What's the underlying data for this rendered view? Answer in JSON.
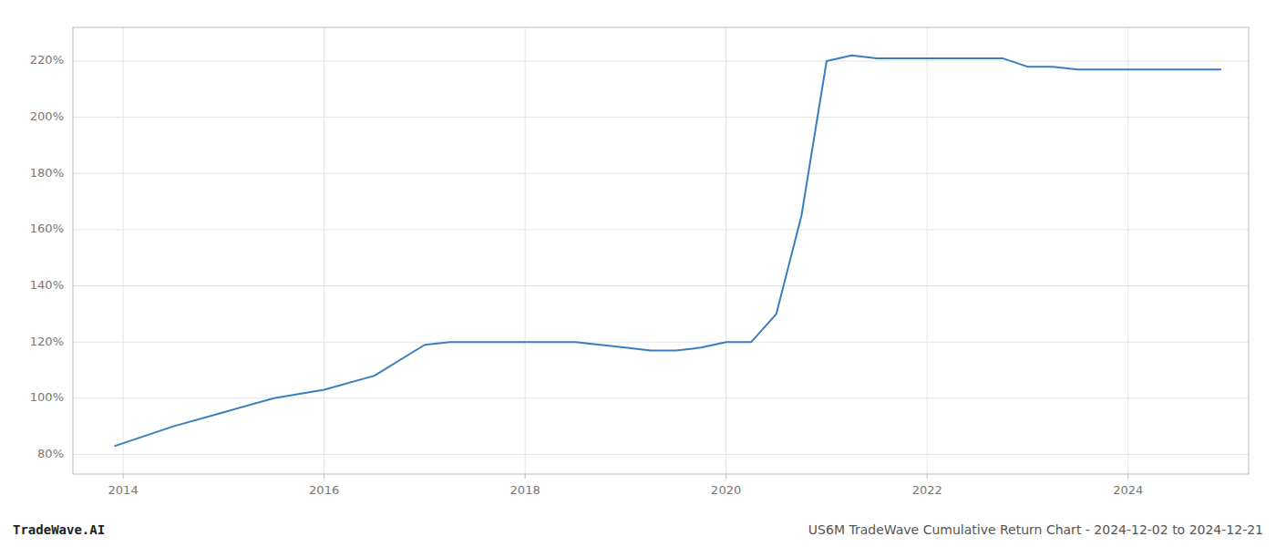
{
  "chart_data": {
    "type": "line",
    "title": "US6M TradeWave Cumulative Return Chart - 2024-12-02 to 2024-12-21",
    "annotations": [
      "TradeWave.AI"
    ],
    "color": "#3a7ebf",
    "grid": true,
    "x": [
      2013.92,
      2014.0,
      2014.5,
      2015.0,
      2015.5,
      2016.0,
      2016.5,
      2017.0,
      2017.25,
      2017.5,
      2018.0,
      2018.5,
      2019.0,
      2019.25,
      2019.5,
      2019.75,
      2020.0,
      2020.25,
      2020.5,
      2020.75,
      2021.0,
      2021.25,
      2021.5,
      2021.75,
      2022.0,
      2022.25,
      2022.5,
      2022.75,
      2023.0,
      2023.25,
      2023.5,
      2023.75,
      2024.0,
      2024.25,
      2024.5,
      2024.75,
      2024.92
    ],
    "values": [
      83,
      84,
      90,
      95,
      100,
      103,
      108,
      119,
      120,
      120,
      120,
      120,
      118,
      117,
      117,
      118,
      120,
      120,
      130,
      165,
      220,
      222,
      221,
      221,
      221,
      221,
      221,
      221,
      218,
      218,
      217,
      217,
      217,
      217,
      217,
      217,
      217
    ],
    "xlim": [
      2013.5,
      2025.2
    ],
    "ylim": [
      73,
      232
    ],
    "xticks": [
      2014,
      2016,
      2018,
      2020,
      2022,
      2024
    ],
    "yticks": [
      {
        "value": 80,
        "label": "80%"
      },
      {
        "value": 100,
        "label": "100%"
      },
      {
        "value": 120,
        "label": "120%"
      },
      {
        "value": 140,
        "label": "140%"
      },
      {
        "value": 160,
        "label": "160%"
      },
      {
        "value": 180,
        "label": "180%"
      },
      {
        "value": 200,
        "label": "200%"
      },
      {
        "value": 220,
        "label": "220%"
      }
    ]
  }
}
